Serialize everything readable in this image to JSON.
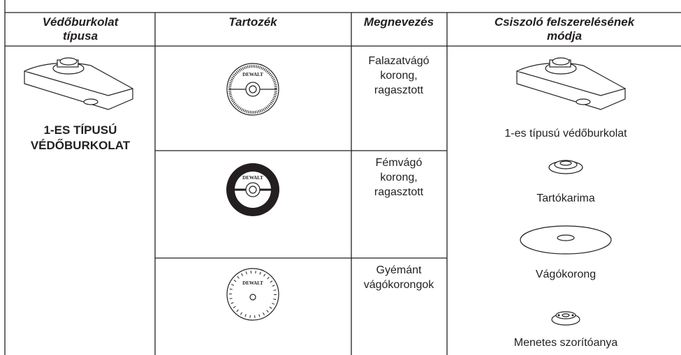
{
  "table": {
    "header": [
      [
        "Védőburkolat",
        "típusa"
      ],
      [
        "Tartozék"
      ],
      [
        "Megnevezés"
      ],
      [
        "Csiszoló felszerelésének",
        "módja"
      ]
    ],
    "guard_type": [
      "1-ES TÍPUSÚ",
      "VÉDŐBURKOLAT"
    ],
    "brand": "DEWALT",
    "rows": [
      {
        "name": [
          "Falazatvágó",
          "korong,",
          "ragasztott"
        ]
      },
      {
        "name": [
          "Fémvágó",
          "korong,",
          "ragasztott"
        ]
      },
      {
        "name": [
          "Gyémánt",
          "vágókorongok"
        ]
      }
    ],
    "assembly": [
      "1-es típusú védőburkolat",
      "Tartókarima",
      "Vágókorong",
      "Menetes szorítóanya"
    ]
  }
}
